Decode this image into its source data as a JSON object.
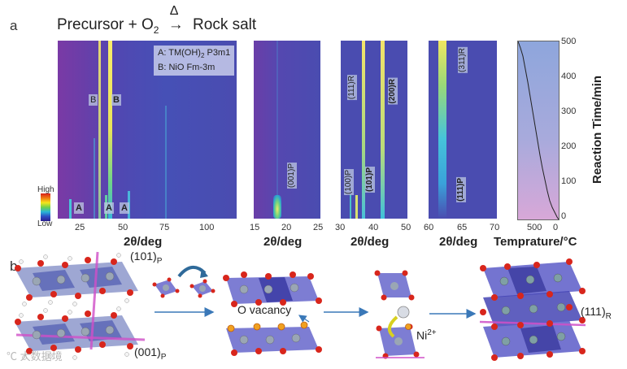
{
  "panel_a": {
    "letter": "a",
    "reaction_left": "Precursor + O",
    "reaction_sub": "2",
    "reaction_arrow": "→",
    "reaction_delta": "Δ",
    "reaction_right": "Rock salt",
    "legend": {
      "line1_prefix": "A: TM(OH)",
      "line1_sub": "2",
      "line1_suffix": " P3m1",
      "line2": "B: NiO Fm-3m"
    },
    "colorbar": {
      "high": "High",
      "low": "Low"
    },
    "heatmaps": [
      {
        "xlabel": "2θ/deg",
        "ticks": [
          "25",
          "50",
          "75",
          "100"
        ],
        "labels": [
          "B",
          "B",
          "A",
          "A",
          "A"
        ]
      },
      {
        "xlabel": "2θ/deg",
        "ticks": [
          "15",
          "20",
          "25"
        ],
        "labels": [
          "(001)P"
        ]
      },
      {
        "xlabel": "2θ/deg",
        "ticks": [
          "30",
          "40",
          "50"
        ],
        "labels": [
          "(111)R",
          "(200)R",
          "(100)P",
          "(101)P"
        ]
      },
      {
        "xlabel": "2θ/deg",
        "ticks": [
          "60",
          "65",
          "70"
        ],
        "labels": [
          "(311)R",
          "(111)P"
        ]
      }
    ],
    "temp_panel": {
      "xlabel": "Temprature/°C",
      "xticks": [
        "500",
        "0"
      ],
      "ylabel": "Reaction Time/min",
      "yticks": [
        "500",
        "400",
        "300",
        "200",
        "100",
        "0"
      ]
    }
  },
  "panel_b": {
    "letter": "b",
    "label_101p": "(101)",
    "label_001p": "(001)",
    "sub_p": "P",
    "o_vacancy": "O vacancy",
    "ni_label": "Ni",
    "ni_sup": "2+",
    "label_111r": "(111)",
    "sub_r": "R",
    "watermark": "大数据境"
  },
  "colors": {
    "heat_bg": "#4a4cb0",
    "heat_left": "#7a3ca8",
    "peak_yellow": "#f2e65a",
    "peak_cyan": "#42c0dc",
    "octa_blue": "#5c5cc8",
    "oxygen_red": "#d8261c",
    "metal_gray": "#9aa6b4",
    "arrow_blue": "#3a78b8",
    "temp_top": "#8fa6dc",
    "temp_bottom": "#d8a8d8"
  }
}
